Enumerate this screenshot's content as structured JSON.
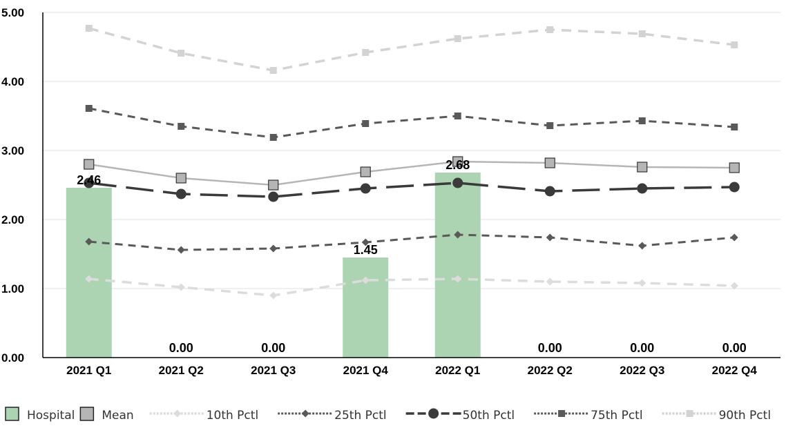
{
  "chart_data": {
    "type": "bar",
    "categories": [
      "2021 Q1",
      "2021 Q2",
      "2021 Q3",
      "2021 Q4",
      "2022 Q1",
      "2022 Q2",
      "2022 Q3",
      "2022 Q4"
    ],
    "ylim": [
      0,
      5
    ],
    "yticks": [
      "0.00",
      "1.00",
      "2.00",
      "3.00",
      "4.00",
      "5.00"
    ],
    "grid": true,
    "legend_position": "bottom",
    "series": [
      {
        "name": "Hospital",
        "kind": "bar",
        "color": "#acd3b2",
        "values": [
          2.46,
          0,
          0,
          1.45,
          2.68,
          0,
          0,
          0
        ],
        "labels": [
          "2.46",
          "0.00",
          "0.00",
          "1.45",
          "2.68",
          "0.00",
          "0.00",
          "0.00"
        ]
      },
      {
        "name": "Mean",
        "kind": "line",
        "color": "#b5b5b5",
        "marker": "square",
        "values": [
          2.8,
          2.6,
          2.5,
          2.69,
          2.84,
          2.82,
          2.76,
          2.75
        ]
      },
      {
        "name": "10th Pctl",
        "kind": "line",
        "color": "#dcdcdc",
        "marker": "diamond",
        "values": [
          1.14,
          1.02,
          0.9,
          1.12,
          1.14,
          1.1,
          1.08,
          1.04
        ]
      },
      {
        "name": "25th Pctl",
        "kind": "line",
        "color": "#595959",
        "marker": "diamond",
        "values": [
          1.68,
          1.56,
          1.58,
          1.67,
          1.78,
          1.74,
          1.62,
          1.74
        ]
      },
      {
        "name": "50th Pctl",
        "kind": "line",
        "color": "#3a3a3a",
        "marker": "circle",
        "values": [
          2.53,
          2.37,
          2.33,
          2.45,
          2.53,
          2.41,
          2.45,
          2.47
        ]
      },
      {
        "name": "75th Pctl",
        "kind": "line",
        "color": "#595959",
        "marker": "square",
        "values": [
          3.61,
          3.35,
          3.19,
          3.39,
          3.5,
          3.36,
          3.43,
          3.34
        ]
      },
      {
        "name": "90th Pctl",
        "kind": "line",
        "color": "#d3d3d3",
        "marker": "square",
        "values": [
          4.77,
          4.41,
          4.16,
          4.42,
          4.62,
          4.75,
          4.69,
          4.53
        ]
      }
    ]
  }
}
